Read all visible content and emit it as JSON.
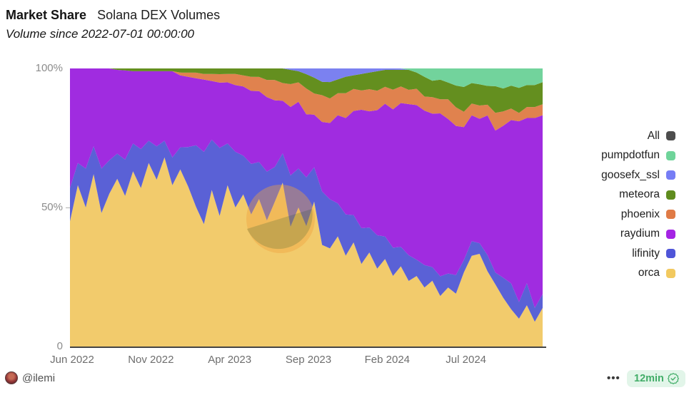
{
  "header": {
    "title": "Market Share",
    "title_secondary": "Solana DEX Volumes",
    "subtitle": "Volume since 2022-07-01 00:00:00"
  },
  "watermark": {
    "text": "Dune"
  },
  "footer": {
    "author": "@ilemi",
    "menu_dots": "•••",
    "refresh_label": "12min",
    "badge_text_color": "#42ad68",
    "badge_bg_color": "#e2f5e9"
  },
  "chart_data": {
    "type": "area",
    "stacked_percent": true,
    "title": "Market Share Solana DEX Volumes",
    "xlabel": "",
    "ylabel": "",
    "ylim": [
      0,
      100
    ],
    "grid": false,
    "legend_position": "right",
    "y_tick_labels": [
      "100%",
      "50%",
      "0"
    ],
    "x_tick_labels": [
      "Jun 2022",
      "Nov 2022",
      "Apr 2023",
      "Sep 2023",
      "Feb 2024",
      "Jul 2024"
    ],
    "x_tick_indices": [
      0,
      10,
      20,
      30,
      40,
      50
    ],
    "legend": [
      {
        "label": "All",
        "color": "#4d4d4d"
      },
      {
        "label": "pumpdotfun",
        "color": "#6fd49a"
      },
      {
        "label": "goosefx_ssl",
        "color": "#767df5"
      },
      {
        "label": "meteora",
        "color": "#5f8c1e"
      },
      {
        "label": "phoenix",
        "color": "#e07b46"
      },
      {
        "label": "raydium",
        "color": "#a524e4"
      },
      {
        "label": "lifinity",
        "color": "#4f55d8"
      },
      {
        "label": "orca",
        "color": "#f2c95f"
      }
    ],
    "series": [
      {
        "name": "orca",
        "color": "#f2cb6c",
        "values": [
          45,
          58,
          50,
          62,
          48,
          55,
          60,
          54,
          63,
          57,
          66,
          60,
          68,
          58,
          64,
          57,
          50,
          44,
          56,
          46,
          58,
          50,
          55,
          47,
          52,
          44,
          50,
          56,
          42,
          50,
          42,
          55,
          38,
          36,
          40,
          33,
          38,
          30,
          34,
          28,
          31,
          25,
          29,
          23,
          26,
          21,
          24,
          18,
          21,
          17,
          24,
          31,
          35,
          28,
          21,
          17,
          13,
          10,
          15,
          9,
          14
        ]
      },
      {
        "name": "lifinity",
        "color": "#5a61d6",
        "values": [
          12,
          8,
          14,
          10,
          16,
          12,
          9,
          13,
          10,
          14,
          8,
          12,
          6,
          10,
          8,
          14,
          22,
          26,
          18,
          24,
          15,
          20,
          14,
          18,
          13,
          17,
          12,
          10,
          18,
          14,
          17,
          13,
          20,
          18,
          12,
          15,
          10,
          13,
          9,
          12,
          8,
          10,
          7,
          9,
          6,
          8,
          5,
          7,
          5,
          6,
          4,
          5,
          4,
          6,
          4,
          7,
          9,
          6,
          8,
          5,
          5
        ]
      },
      {
        "name": "raydium",
        "color": "#a02ce0",
        "values": [
          43,
          34,
          36,
          28,
          36,
          33,
          30,
          32,
          26,
          28,
          25,
          27,
          25,
          31,
          26,
          25,
          24,
          26,
          21,
          23,
          22,
          24,
          25,
          26,
          25,
          26,
          23,
          18,
          24,
          24,
          22,
          20,
          26,
          28,
          32,
          35,
          38,
          43,
          42,
          45,
          47,
          49,
          52,
          53,
          57,
          55,
          56,
          58,
          55,
          48,
          43,
          43,
          47,
          52,
          48,
          53,
          57,
          65,
          60,
          69,
          65
        ]
      },
      {
        "name": "phoenix",
        "color": "#e0824e",
        "values": [
          0,
          0,
          0,
          0,
          0,
          0,
          0,
          0,
          0,
          0,
          0,
          0,
          0,
          0,
          1,
          1.5,
          2,
          2,
          2.5,
          3,
          3,
          4,
          4,
          5,
          5,
          6,
          7,
          6,
          8,
          7,
          9,
          8,
          10,
          9,
          8,
          9,
          8,
          7,
          8,
          7,
          6,
          7,
          6,
          5,
          6,
          5,
          6,
          5,
          7,
          6,
          5,
          4,
          5,
          4,
          6,
          5,
          4,
          3,
          4,
          4,
          4
        ]
      },
      {
        "name": "meteora",
        "color": "#648f1f",
        "values": [
          0,
          0,
          0,
          0,
          0,
          0,
          0.5,
          0.7,
          1,
          1,
          1,
          1,
          1,
          1,
          1.5,
          1.5,
          1.5,
          2,
          2,
          2,
          2,
          2,
          2.5,
          3,
          3,
          4,
          4,
          5,
          5,
          4,
          5,
          6,
          5,
          6,
          5,
          6,
          5,
          6,
          6,
          7,
          6,
          7,
          6,
          7,
          6,
          7,
          6,
          7,
          6,
          7,
          8,
          7,
          8,
          7,
          9,
          8,
          8,
          9,
          8,
          8,
          8
        ]
      },
      {
        "name": "goosefx_ssl",
        "color": "#7b81f0",
        "values": [
          0,
          0,
          0,
          0,
          0,
          0,
          0,
          0,
          0,
          0,
          0,
          0,
          0,
          0,
          0,
          0,
          0,
          0,
          0,
          0,
          0,
          0,
          0,
          0,
          0,
          0,
          0,
          0,
          0.5,
          1,
          2,
          3.5,
          5,
          5,
          4,
          3,
          2.5,
          2,
          1.5,
          1,
          0.5,
          0.5,
          0.5,
          0,
          0,
          0,
          0,
          0,
          0,
          0,
          0,
          0,
          0,
          0,
          0,
          0,
          0,
          0,
          0,
          0,
          0
        ]
      },
      {
        "name": "pumpdotfun",
        "color": "#72d39c",
        "values": [
          0,
          0,
          0,
          0,
          0,
          0,
          0,
          0,
          0,
          0,
          0,
          0,
          0,
          0,
          0,
          0,
          0,
          0,
          0,
          0,
          0,
          0,
          0,
          0,
          0,
          0,
          0,
          0,
          0,
          0,
          0,
          0,
          0,
          0,
          0,
          0,
          0,
          0,
          0,
          0,
          0,
          0,
          0,
          0.5,
          1.5,
          3,
          4.5,
          4,
          5,
          5.5,
          6,
          5,
          6,
          6.5,
          6,
          7,
          6,
          7,
          6,
          6,
          5
        ]
      }
    ]
  }
}
